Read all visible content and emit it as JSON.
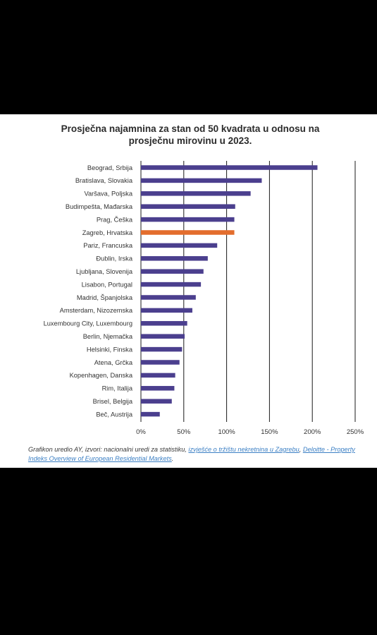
{
  "colors": {
    "bar": "#4b3f8e",
    "highlight": "#e36d2d",
    "grid": "#1a1a1a"
  },
  "chart_data": {
    "type": "bar",
    "orientation": "horizontal",
    "title": "Prosječna najamnina za stan od 50 kvadrata u odnosu na prosječnu mirovinu u 2023.",
    "categories": [
      "Beograd, Srbija",
      "Bratislava, Slovakia",
      "Varšava, Poljska",
      "Budimpešta, Mađarska",
      "Prag, Češka",
      "Zagreb, Hrvatska",
      "Pariz, Francuska",
      "Đublin, Irska",
      "Ljubljana, Slovenija",
      "Lisabon, Portugal",
      "Madrid, Španjolska",
      "Amsterdam, Nizozemska",
      "Luxembourg City, Luxembourg",
      "Berlin, Njemačka",
      "Helsinki, Finska",
      "Atena, Grčka",
      "Kopenhagen, Danska",
      "Rim, Italija",
      "Brisel, Belgija",
      "Beč, Austrija"
    ],
    "values": [
      206,
      141,
      128,
      110,
      109,
      109,
      89,
      78,
      73,
      70,
      64,
      60,
      54,
      51,
      48,
      45,
      40,
      39,
      36,
      22
    ],
    "highlight_index": 5,
    "xlim": [
      0,
      250
    ],
    "xticks": [
      0,
      50,
      100,
      150,
      200,
      250
    ],
    "xtick_labels": [
      "0%",
      "50%",
      "100%",
      "150%",
      "200%",
      "250%"
    ],
    "xlabel": "",
    "ylabel": "",
    "grid": true
  },
  "source": {
    "prefix": "Grafikon uredio AY, izvori: nacionalni uredi za statistiku, ",
    "link1": "izvješće o tržištu nekretnina u Zagrebu",
    "sep": ", ",
    "link2": "Deloitte - Property Indeks Overview of European Residential Markets",
    "suffix": "."
  }
}
